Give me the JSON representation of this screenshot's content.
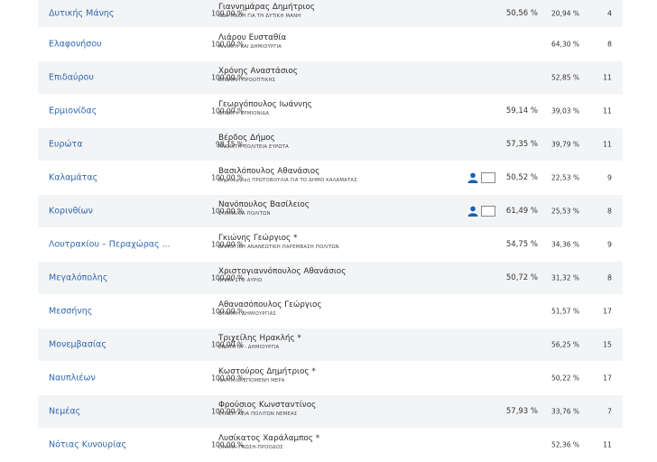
{
  "colors": {
    "link": "#2e67b1",
    "stripe": "#f3f4f6",
    "icon": "#1a5fb4"
  },
  "rows": [
    {
      "municipality": "Δυτικής Μάνης",
      "counted": "100,00 %",
      "candidate": "Γιαννημάρας Δημήτριος",
      "party": "ΝΕΑ ΠΝΟΗ ΓΙΑ ΤΗ ΔΥΤΙΚΗ ΜΑΝΗ",
      "round2": "50,56 %",
      "round1": "20,94 %",
      "seats": "4",
      "icons": false
    },
    {
      "municipality": "Ελαφονήσου",
      "counted": "100,00 %",
      "candidate": "Λιάρου Ευσταθία",
      "party": "ΑΛΛΑΓΗ ΚΑΙ ΔΗΜΙΟΥΡΓΙΑ",
      "round2": "",
      "round1": "64,30 %",
      "seats": "8",
      "icons": false
    },
    {
      "municipality": "Επιδαύρου",
      "counted": "100,00 %",
      "candidate": "Χρόνης Αναστάσιος",
      "party": "ΔΥΝΑΜΗ ΠΡΟΟΠΤΙΚΗΣ",
      "round2": "",
      "round1": "52,85 %",
      "seats": "11",
      "icons": false
    },
    {
      "municipality": "Ερμιονίδας",
      "counted": "100,00 %",
      "candidate": "Γεωργόπουλος Ιωάννης",
      "party": "ΔΥΝΑΤΗ ΕΡΜΙΟΝΙΔΑ",
      "round2": "59,14 %",
      "round1": "39,03 %",
      "seats": "11",
      "icons": false
    },
    {
      "municipality": "Ευρώτα",
      "counted": "98,15 %",
      "candidate": "Βέρδος Δήμος",
      "party": "ΑΝΟΙΧΤΗ ΠΟΛΙΤΕΙΑ ΕΥΡΩΤΑ",
      "round2": "57,35 %",
      "round1": "39,79 %",
      "seats": "11",
      "icons": false
    },
    {
      "municipality": "Καλαμάτας",
      "counted": "100,00 %",
      "candidate": "Βασιλόπουλος Αθανάσιος",
      "party": "Δημιουργική ΠΡΩΤΟΒΟΥΛΙΑ ΓΙΑ ΤΟ ΔΗΜΟ ΚΑΛΑΜΑΤΑΣ",
      "round2": "50,52 %",
      "round1": "22,53 %",
      "seats": "9",
      "icons": true
    },
    {
      "municipality": "Κορινθίων",
      "counted": "100,00 %",
      "candidate": "Νανόπουλος Βασίλειος",
      "party": "ΣΥΜΜΑΧΙΑ ΠΟΛΙΤΩΝ",
      "round2": "61,49 %",
      "round1": "25,53 %",
      "seats": "8",
      "icons": true
    },
    {
      "municipality": "Λουτρακίου – Περαχώρας ...",
      "counted": "100,00 %",
      "candidate": "Γκιώνης Γεώργιος *",
      "party": "ΔΗΜΟΤΙΚΗ ΑΝΑΝΕΩΤΙΚΗ ΠΑΡΕΜΒΑΣΗ ΠΟΛΙΤΩΝ",
      "round2": "54,75 %",
      "round1": "34,36 %",
      "seats": "9",
      "icons": false
    },
    {
      "municipality": "Μεγαλόπολης",
      "counted": "100,00 %",
      "candidate": "Χριστογιαννόπουλος Αθανάσιος",
      "party": "ΒΗΜΑ ΣΤΟ ΑΥΡΙΟ",
      "round2": "50,72 %",
      "round1": "31,32 %",
      "seats": "8",
      "icons": false
    },
    {
      "municipality": "Μεσσήνης",
      "counted": "100,00 %",
      "candidate": "Αθανασόπουλος Γεώργιος",
      "party": "ΔΥΝΑΜΗ ΔΗΜΙΟΥΡΓΙΑΣ",
      "round2": "",
      "round1": "51,57 %",
      "seats": "17",
      "icons": false
    },
    {
      "municipality": "Μονεμβασίας",
      "counted": "100,00 %",
      "candidate": "Τριχείλης Ηρακλής *",
      "party": "ΕΝΟΤΗΤΑ - ΔΗΜΙΟΥΡΓΙΑ",
      "round2": "",
      "round1": "56,25 %",
      "seats": "15",
      "icons": false
    },
    {
      "municipality": "Ναυπλιέων",
      "counted": "100,00 %",
      "candidate": "Κωστούρος Δημήτριος *",
      "party": "ΝΑΥΠΛΙΟ.ΕΠΟΜΕΝΗ ΜΕΡΑ",
      "round2": "",
      "round1": "50,22 %",
      "seats": "17",
      "icons": false
    },
    {
      "municipality": "Νεμέας",
      "counted": "100,00 %",
      "candidate": "Φρούσιος Κωνσταντίνος",
      "party": "ΣΥΝΕΡΓΑΣΙΑ ΠΟΛΙΤΩΝ ΝΕΜΕΑΣ",
      "round2": "57,93 %",
      "round1": "33,76 %",
      "seats": "7",
      "icons": false
    },
    {
      "municipality": "Νότιας Κυνουρίας",
      "counted": "100,00 %",
      "candidate": "Λυσίκατος Χαράλαμπος *",
      "party": "ΟΡΑΜΑ-ΓΝΩΣΗ-ΠΡΟΟΔΟΣ",
      "round2": "",
      "round1": "52,36 %",
      "seats": "11",
      "icons": false
    }
  ]
}
